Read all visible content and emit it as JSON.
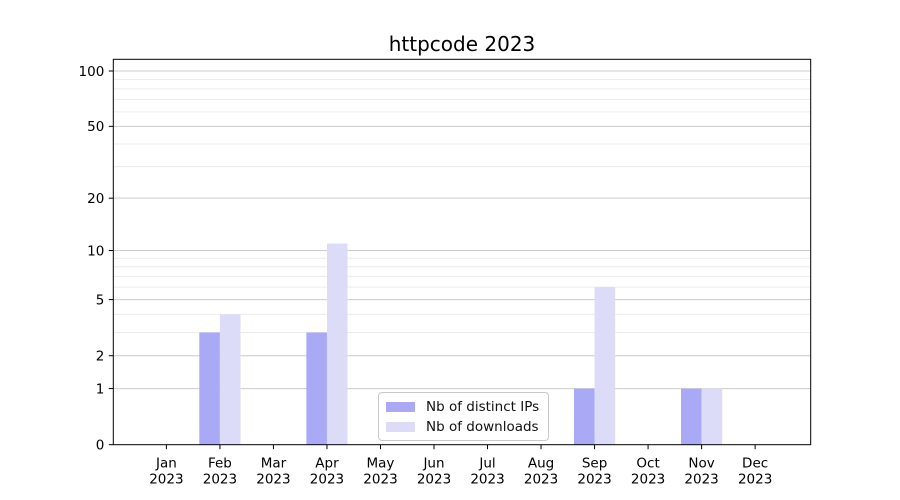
{
  "title": "httpcode 2023",
  "colors": {
    "background": "#ffffff",
    "distinct_ips_bar": "#a9a9f6",
    "downloads_bar": "#dcdcf9",
    "grid_major": "#cccccc",
    "grid_minor": "#ececec",
    "axis_spine": "#000000",
    "tick_label": "#000000"
  },
  "chart_data": {
    "type": "bar",
    "title": "httpcode 2023",
    "xlabel": "",
    "ylabel": "",
    "year_label": "2023",
    "categories": [
      "Jan",
      "Feb",
      "Mar",
      "Apr",
      "May",
      "Jun",
      "Jul",
      "Aug",
      "Sep",
      "Oct",
      "Nov",
      "Dec"
    ],
    "series": [
      {
        "name": "Nb of distinct IPs",
        "color": "#a9a9f6",
        "values": [
          0,
          3,
          0,
          3,
          0,
          0,
          0,
          0,
          1,
          0,
          1,
          0
        ]
      },
      {
        "name": "Nb of downloads",
        "color": "#dcdcf9",
        "values": [
          0,
          4,
          0,
          11,
          0,
          0,
          0,
          0,
          6,
          0,
          1,
          0
        ]
      }
    ],
    "y_axis": {
      "scale": "log10(1+v)",
      "ticks": [
        0,
        1,
        2,
        5,
        10,
        20,
        50,
        100
      ],
      "minor_gridlines": [
        3,
        4,
        6,
        7,
        8,
        9,
        30,
        40,
        60,
        70,
        80,
        90
      ],
      "range_top_value": 116
    },
    "grid": true,
    "legend": {
      "position": "bottom-center",
      "entries": [
        "Nb of distinct IPs",
        "Nb of downloads"
      ]
    }
  }
}
